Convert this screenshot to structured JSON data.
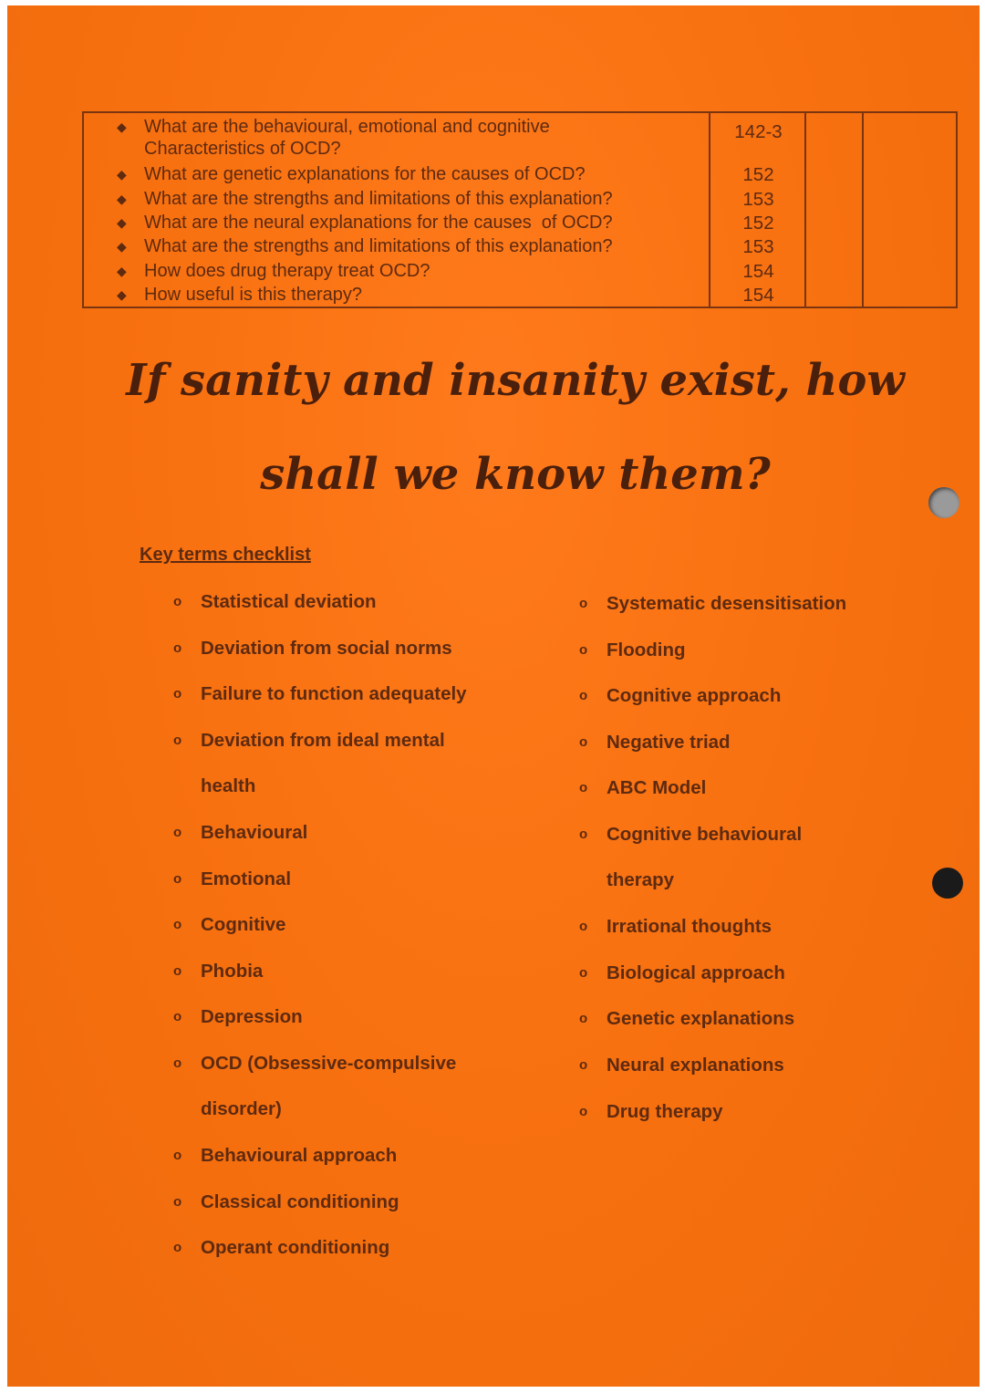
{
  "table": {
    "rows": [
      {
        "question": "What are the behavioural, emotional and cognitive\nCharacteristics of OCD?",
        "page": "142-3"
      },
      {
        "question": "What are genetic explanations for the causes of OCD?",
        "page": "152"
      },
      {
        "question": "What are the strengths and limitations of this explanation?",
        "page": "153"
      },
      {
        "question": "What are the neural explanations for the causes  of OCD?",
        "page": "152"
      },
      {
        "question": "What are the strengths and limitations of this explanation?",
        "page": "153"
      },
      {
        "question": "How does drug therapy treat OCD?",
        "page": "154"
      },
      {
        "question": "How useful is this therapy?",
        "page": "154"
      }
    ]
  },
  "quote": {
    "line1": "If sanity and insanity exist, how",
    "line2": "shall we know them?"
  },
  "key_terms": {
    "heading": "Key terms checklist",
    "bullet": "o",
    "left": [
      "Statistical deviation",
      "Deviation from social norms",
      "Failure to function adequately",
      "Deviation from ideal mental\nhealth",
      "Behavioural",
      "Emotional",
      "Cognitive",
      "Phobia",
      "Depression",
      "OCD (Obsessive-compulsive\ndisorder)",
      "Behavioural approach",
      "Classical conditioning",
      "Operant conditioning"
    ],
    "right": [
      "Systematic desensitisation",
      "Flooding",
      "Cognitive approach",
      "Negative triad",
      "ABC Model",
      "Cognitive behavioural\ntherapy",
      "Irrational thoughts",
      "Biological approach",
      "Genetic explanations",
      "Neural explanations",
      "Drug therapy"
    ]
  },
  "colors": {
    "paper": "#f7700f",
    "ink": "#5e2a10"
  }
}
